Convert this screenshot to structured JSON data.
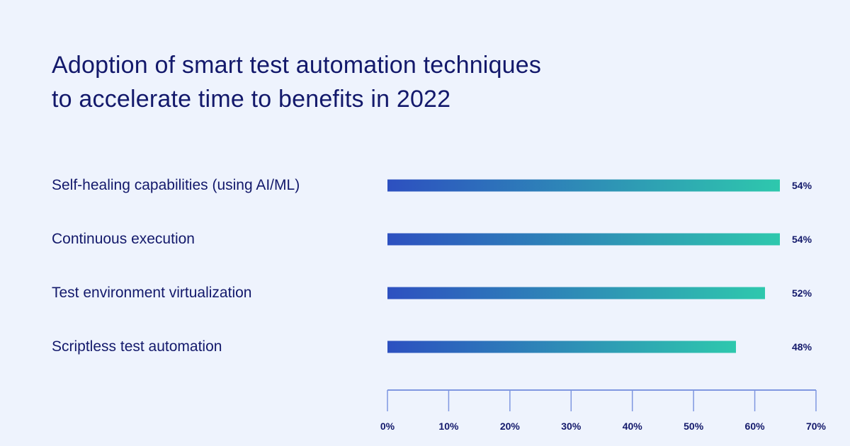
{
  "chart_data": {
    "type": "bar",
    "orientation": "horizontal",
    "title": [
      "Adoption of smart test automation techniques",
      "to accelerate time to benefits in 2022"
    ],
    "categories": [
      "Self-healing capabilities (using AI/ML)",
      "Continuous execution",
      "Test environment virtualization",
      "Scriptless test automation"
    ],
    "values": [
      54,
      54,
      52,
      48
    ],
    "value_labels": [
      "54%",
      "54%",
      "52%",
      "48%"
    ],
    "xlim": [
      0,
      70
    ],
    "x_ticks": [
      0,
      10,
      20,
      30,
      40,
      50,
      60,
      70
    ],
    "x_tick_labels": [
      "0%",
      "10%",
      "20%",
      "30%",
      "40%",
      "50%",
      "60%",
      "70%"
    ],
    "grid": false,
    "colors": {
      "bar_start": "#2d50c0",
      "bar_end": "#2ec8ad",
      "text": "#13196b",
      "axis": "#7f97e0",
      "background": "#eef3fd"
    }
  }
}
